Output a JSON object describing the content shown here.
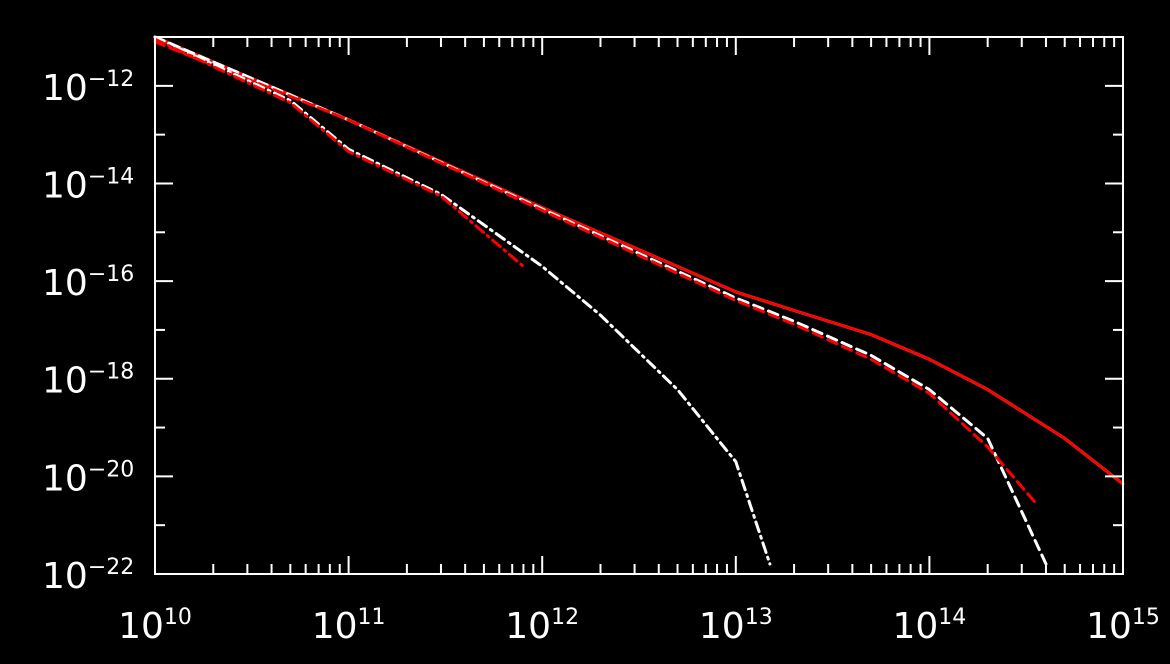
{
  "chart_data": {
    "type": "line",
    "x_scale": "log",
    "y_scale": "log",
    "xlim": [
      10000000000.0,
      1000000000000000.0
    ],
    "ylim": [
      1e-22,
      1e-11
    ],
    "grid": false,
    "background_color": "#000000",
    "axis_color": "#ffffff",
    "x_ticks": [
      {
        "base": "10",
        "exp": "10",
        "value": 10000000000.0
      },
      {
        "base": "10",
        "exp": "11",
        "value": 100000000000.0
      },
      {
        "base": "10",
        "exp": "12",
        "value": 1000000000000.0
      },
      {
        "base": "10",
        "exp": "13",
        "value": 10000000000000.0
      },
      {
        "base": "10",
        "exp": "14",
        "value": 100000000000000.0
      },
      {
        "base": "10",
        "exp": "15",
        "value": 1000000000000000.0
      }
    ],
    "y_ticks": [
      {
        "base": "10",
        "exp": "−22",
        "value": 1e-22
      },
      {
        "base": "10",
        "exp": "−20",
        "value": 1e-20
      },
      {
        "base": "10",
        "exp": "−18",
        "value": 1e-18
      },
      {
        "base": "10",
        "exp": "−16",
        "value": 1e-16
      },
      {
        "base": "10",
        "exp": "−14",
        "value": 1e-14
      },
      {
        "base": "10",
        "exp": "−12",
        "value": 1e-12
      }
    ],
    "series": [
      {
        "color": "#ffffff",
        "dash": "solid",
        "x": [
          10000000000.0,
          100000000000.0,
          1000000000000.0,
          10000000000000.0,
          20000000000000.0,
          50000000000000.0,
          100000000000000.0,
          200000000000000.0,
          500000000000000.0,
          1000000000000000.0
        ],
        "y": [
          1e-11,
          2e-13,
          3.2e-15,
          6e-17,
          2.5e-17,
          8e-18,
          2.5e-18,
          6e-19,
          6e-20,
          7e-21
        ]
      },
      {
        "color": "#ff0000",
        "dash": "solid",
        "x": [
          10000000000.0,
          100000000000.0,
          1000000000000.0,
          10000000000000.0,
          20000000000000.0,
          50000000000000.0,
          100000000000000.0,
          200000000000000.0,
          500000000000000.0,
          1000000000000000.0
        ],
        "y": [
          1e-11,
          2e-13,
          3.2e-15,
          6e-17,
          2.5e-17,
          8e-18,
          2.5e-18,
          6e-19,
          6e-20,
          7e-21
        ]
      },
      {
        "color": "#ffffff",
        "dash": "dash",
        "x": [
          10000000000.0,
          100000000000.0,
          1000000000000.0,
          10000000000000.0,
          20000000000000.0,
          50000000000000.0,
          100000000000000.0,
          200000000000000.0,
          400000000000000.0
        ],
        "y": [
          1e-11,
          2e-13,
          3e-15,
          4.5e-17,
          1.5e-17,
          3e-18,
          6e-19,
          6e-20,
          1.6e-22
        ]
      },
      {
        "color": "#ff0000",
        "dash": "dash",
        "x": [
          10000000000.0,
          100000000000.0,
          1000000000000.0,
          10000000000000.0,
          20000000000000.0,
          50000000000000.0,
          100000000000000.0,
          200000000000000.0,
          350000000000000.0
        ],
        "y": [
          8e-12,
          2e-13,
          2.8e-15,
          4e-17,
          1.3e-17,
          2.5e-18,
          5e-19,
          4e-20,
          3e-21
        ]
      },
      {
        "color": "#ffffff",
        "dash": "dashdot",
        "x": [
          10000000000.0,
          50000000000.0,
          100000000000.0,
          300000000000.0,
          1000000000000.0,
          2000000000000.0,
          5000000000000.0,
          10000000000000.0,
          15000000000000.0
        ],
        "y": [
          1e-11,
          5e-13,
          5e-14,
          6e-15,
          2e-16,
          2e-17,
          6e-19,
          2e-20,
          1.6e-22
        ]
      },
      {
        "color": "#ff0000",
        "dash": "dashdot",
        "x": [
          10000000000.0,
          50000000000.0,
          100000000000.0,
          300000000000.0,
          800000000000.0
        ],
        "y": [
          9e-12,
          4.5e-13,
          4.5e-14,
          5.5e-15,
          2e-16
        ]
      }
    ]
  }
}
